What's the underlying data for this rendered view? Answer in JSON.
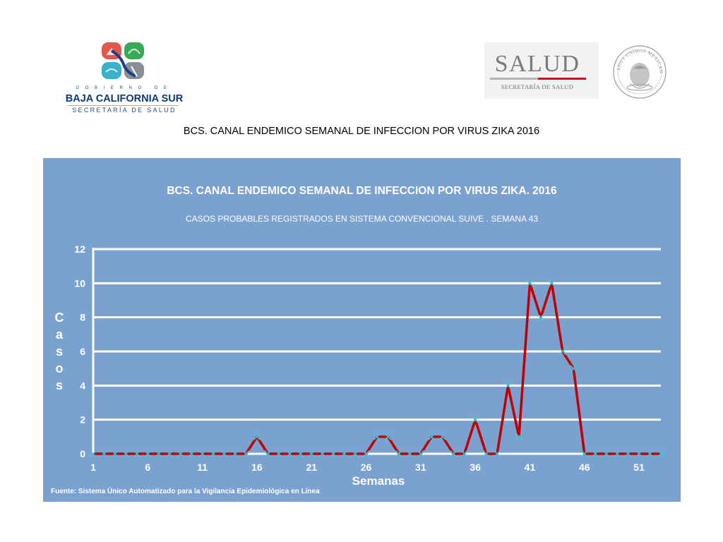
{
  "header": {
    "left_logo": {
      "gobierno_text": "GOBIERNO DE",
      "name": "BAJA CALIFORNIA SUR",
      "secretaria": "SECRETARÍA DE SALUD"
    },
    "right_logo": {
      "word": "SALUD",
      "subtitle": "SECRETARÍA DE SALUD",
      "seal_text": "ESTADOS UNIDOS MEXICANOS"
    },
    "page_title": "BCS. CANAL ENDEMICO SEMANAL DE INFECCION POR VIRUS ZIKA 2016"
  },
  "colors": {
    "panel_background": "#7aa1d0",
    "line": "#c00000",
    "marker": "#40c8e0",
    "gridline": "#ffffff"
  },
  "chart_data": {
    "type": "line",
    "title": "BCS. CANAL ENDEMICO SEMANAL DE INFECCION POR VIRUS ZIKA. 2016",
    "subtitle": "CASOS PROBABLES REGISTRADOS EN SISTEMA CONVENCIONAL SUIVE . SEMANA 43",
    "xlabel": "Semanas",
    "ylabel": "Casos",
    "x_range": [
      1,
      53
    ],
    "ylim": [
      0,
      12
    ],
    "yticks": [
      0,
      2,
      4,
      6,
      8,
      10,
      12
    ],
    "xticks": [
      1,
      6,
      11,
      16,
      21,
      26,
      31,
      36,
      41,
      46,
      51
    ],
    "grid": true,
    "legend": "none",
    "series": [
      {
        "x": [
          1,
          2,
          3,
          4,
          5,
          6,
          7,
          8,
          9,
          10,
          11,
          12,
          13,
          14,
          15,
          16,
          17,
          18,
          19,
          20,
          21,
          22,
          23,
          24,
          25,
          26,
          27,
          28,
          29,
          30,
          31,
          32,
          33,
          34,
          35,
          36,
          37,
          38,
          39,
          40,
          41,
          42,
          43,
          44,
          45,
          46,
          47,
          48,
          49,
          50,
          51,
          52,
          53
        ],
        "values": [
          0,
          0,
          0,
          0,
          0,
          0,
          0,
          0,
          0,
          0,
          0,
          0,
          0,
          0,
          0,
          1,
          0,
          0,
          0,
          0,
          0,
          0,
          0,
          0,
          0,
          0,
          1,
          1,
          0,
          0,
          0,
          1,
          1,
          0,
          0,
          2,
          0,
          0,
          4,
          1,
          10,
          8,
          10,
          6,
          5,
          0,
          0,
          0,
          0,
          0,
          0,
          0,
          0
        ]
      }
    ],
    "source_note": "Fuente: Sistema Único Automatizado para la Vigilancia Epidemiológica en Línea"
  }
}
